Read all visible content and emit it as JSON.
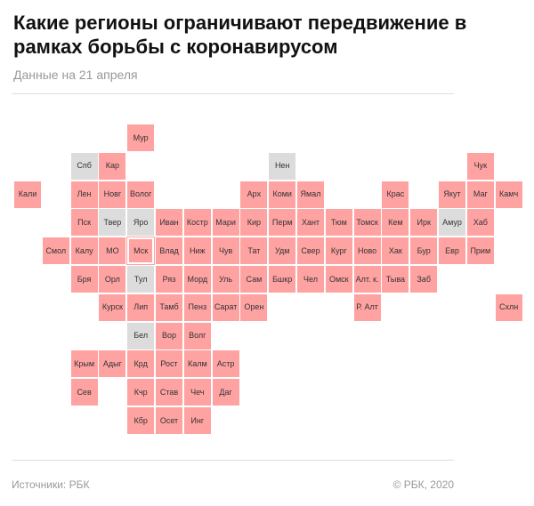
{
  "header": {
    "title": "Какие регионы ограничивают передвижение в рамках борьбы с коронавирусом",
    "subtitle": "Данные на 21 апреля"
  },
  "colors": {
    "restricted": "#ffa2a2",
    "none": "#dcdcdc"
  },
  "regions": [
    {
      "label": "Мур",
      "status": "restricted"
    },
    {
      "label": "Спб",
      "status": "none"
    },
    {
      "label": "Кар",
      "status": "restricted"
    },
    {
      "label": "Нен",
      "status": "none"
    },
    {
      "label": "Чук",
      "status": "restricted"
    },
    {
      "label": "Кали",
      "status": "restricted"
    },
    {
      "label": "Лен",
      "status": "restricted"
    },
    {
      "label": "Новг",
      "status": "restricted"
    },
    {
      "label": "Волог",
      "status": "restricted"
    },
    {
      "label": "Арх",
      "status": "restricted"
    },
    {
      "label": "Коми",
      "status": "restricted"
    },
    {
      "label": "Ямал",
      "status": "restricted"
    },
    {
      "label": "Крас",
      "status": "restricted"
    },
    {
      "label": "Якут",
      "status": "restricted"
    },
    {
      "label": "Маг",
      "status": "restricted"
    },
    {
      "label": "Камч",
      "status": "restricted"
    },
    {
      "label": "Пск",
      "status": "restricted"
    },
    {
      "label": "Твер",
      "status": "none"
    },
    {
      "label": "Яро",
      "status": "none"
    },
    {
      "label": "Иван",
      "status": "restricted"
    },
    {
      "label": "Костр",
      "status": "restricted"
    },
    {
      "label": "Мари",
      "status": "restricted"
    },
    {
      "label": "Кир",
      "status": "restricted"
    },
    {
      "label": "Перм",
      "status": "restricted"
    },
    {
      "label": "Хант",
      "status": "restricted"
    },
    {
      "label": "Тюм",
      "status": "restricted"
    },
    {
      "label": "Томск",
      "status": "restricted"
    },
    {
      "label": "Кем",
      "status": "restricted"
    },
    {
      "label": "Ирк",
      "status": "restricted"
    },
    {
      "label": "Амур",
      "status": "none"
    },
    {
      "label": "Хаб",
      "status": "restricted"
    },
    {
      "label": "Смол",
      "status": "restricted"
    },
    {
      "label": "Калу",
      "status": "restricted"
    },
    {
      "label": "МО",
      "status": "restricted"
    },
    {
      "label": "Мск",
      "status": "highlight"
    },
    {
      "label": "Влад",
      "status": "restricted"
    },
    {
      "label": "Ниж",
      "status": "restricted"
    },
    {
      "label": "Чув",
      "status": "restricted"
    },
    {
      "label": "Тат",
      "status": "restricted"
    },
    {
      "label": "Удм",
      "status": "restricted"
    },
    {
      "label": "Свер",
      "status": "restricted"
    },
    {
      "label": "Кург",
      "status": "restricted"
    },
    {
      "label": "Ново",
      "status": "restricted"
    },
    {
      "label": "Хак",
      "status": "restricted"
    },
    {
      "label": "Бур",
      "status": "restricted"
    },
    {
      "label": "Евр",
      "status": "restricted"
    },
    {
      "label": "Прим",
      "status": "restricted"
    },
    {
      "label": "Бря",
      "status": "restricted"
    },
    {
      "label": "Орл",
      "status": "restricted"
    },
    {
      "label": "Тул",
      "status": "none"
    },
    {
      "label": "Ряз",
      "status": "restricted"
    },
    {
      "label": "Морд",
      "status": "restricted"
    },
    {
      "label": "Уль",
      "status": "restricted"
    },
    {
      "label": "Сам",
      "status": "restricted"
    },
    {
      "label": "Бшкр",
      "status": "restricted"
    },
    {
      "label": "Чел",
      "status": "restricted"
    },
    {
      "label": "Омск",
      "status": "restricted"
    },
    {
      "label": "Алт. к.",
      "status": "restricted"
    },
    {
      "label": "Тыва",
      "status": "restricted"
    },
    {
      "label": "Заб",
      "status": "restricted"
    },
    {
      "label": "Курск",
      "status": "restricted"
    },
    {
      "label": "Лип",
      "status": "restricted"
    },
    {
      "label": "Тамб",
      "status": "restricted"
    },
    {
      "label": "Пенз",
      "status": "restricted"
    },
    {
      "label": "Сарат",
      "status": "restricted"
    },
    {
      "label": "Орен",
      "status": "restricted"
    },
    {
      "label": "Р. Алт",
      "status": "restricted"
    },
    {
      "label": "Схлн",
      "status": "restricted"
    },
    {
      "label": "Бел",
      "status": "none"
    },
    {
      "label": "Вор",
      "status": "restricted"
    },
    {
      "label": "Волг",
      "status": "restricted"
    },
    {
      "label": "Крым",
      "status": "restricted"
    },
    {
      "label": "Адыг",
      "status": "restricted"
    },
    {
      "label": "Крд",
      "status": "restricted"
    },
    {
      "label": "Рост",
      "status": "restricted"
    },
    {
      "label": "Калм",
      "status": "restricted"
    },
    {
      "label": "Астр",
      "status": "restricted"
    },
    {
      "label": "Сев",
      "status": "restricted"
    },
    {
      "label": "Кчр",
      "status": "restricted"
    },
    {
      "label": "Став",
      "status": "restricted"
    },
    {
      "label": "Чеч",
      "status": "restricted"
    },
    {
      "label": "Даг",
      "status": "restricted"
    },
    {
      "label": "Кбр",
      "status": "restricted"
    },
    {
      "label": "Осет",
      "status": "restricted"
    },
    {
      "label": "Инг",
      "status": "restricted"
    }
  ],
  "footer": {
    "source": "Источники: РБК",
    "copyright": "© РБК, 2020"
  }
}
